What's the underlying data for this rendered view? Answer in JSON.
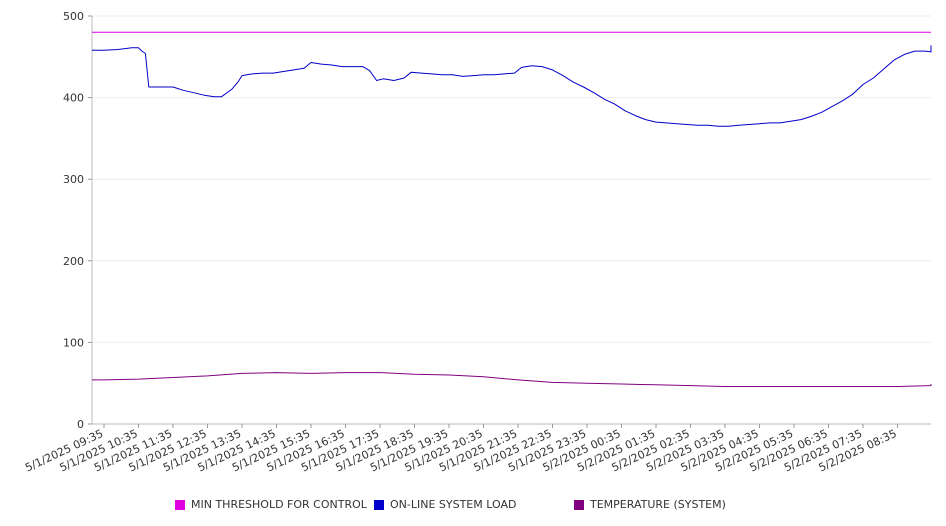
{
  "chart_data": {
    "type": "line",
    "title": "",
    "xlabel": "",
    "ylabel": "",
    "ylim": [
      0,
      500
    ],
    "yticks": [
      0,
      100,
      200,
      300,
      400,
      500
    ],
    "grid": true,
    "legend_position": "bottom",
    "x_tick_labels": [
      "5/1/2025 09:35",
      "5/1/2025 10:35",
      "5/1/2025 11:35",
      "5/1/2025 12:35",
      "5/1/2025 13:35",
      "5/1/2025 14:35",
      "5/1/2025 15:35",
      "5/1/2025 16:35",
      "5/1/2025 17:35",
      "5/1/2025 18:35",
      "5/1/2025 19:35",
      "5/1/2025 20:35",
      "5/1/2025 21:35",
      "5/1/2025 22:35",
      "5/1/2025 23:35",
      "5/2/2025 00:35",
      "5/2/2025 01:35",
      "5/2/2025 02:35",
      "5/2/2025 03:35",
      "5/2/2025 04:35",
      "5/2/2025 05:35",
      "5/2/2025 06:35",
      "5/2/2025 07:35",
      "5/2/2025 08:35"
    ],
    "series": [
      {
        "name": "MIN THRESHOLD FOR CONTROL",
        "color": "#e000e0",
        "points": [
          [
            0,
            480
          ],
          [
            24,
            480
          ]
        ]
      },
      {
        "name": "ON-LINE SYSTEM LOAD",
        "color": "#0000cc",
        "points": [
          [
            0,
            458
          ],
          [
            0.4,
            459
          ],
          [
            0.8,
            461
          ],
          [
            1.0,
            461
          ],
          [
            1.1,
            457
          ],
          [
            1.2,
            454
          ],
          [
            1.3,
            413
          ],
          [
            1.7,
            413
          ],
          [
            2.0,
            413
          ],
          [
            2.3,
            409
          ],
          [
            2.6,
            406
          ],
          [
            2.9,
            403
          ],
          [
            3.2,
            401
          ],
          [
            3.4,
            401
          ],
          [
            3.7,
            410
          ],
          [
            3.9,
            420
          ],
          [
            4.0,
            427
          ],
          [
            4.3,
            429
          ],
          [
            4.6,
            430
          ],
          [
            4.9,
            430
          ],
          [
            5.2,
            432
          ],
          [
            5.5,
            434
          ],
          [
            5.8,
            436
          ],
          [
            6.0,
            443
          ],
          [
            6.3,
            441
          ],
          [
            6.6,
            440
          ],
          [
            6.9,
            438
          ],
          [
            7.2,
            438
          ],
          [
            7.5,
            438
          ],
          [
            7.7,
            433
          ],
          [
            7.9,
            421
          ],
          [
            8.1,
            423
          ],
          [
            8.4,
            421
          ],
          [
            8.7,
            424
          ],
          [
            8.9,
            431
          ],
          [
            9.2,
            430
          ],
          [
            9.5,
            429
          ],
          [
            9.8,
            428
          ],
          [
            10.1,
            428
          ],
          [
            10.4,
            426
          ],
          [
            10.7,
            427
          ],
          [
            11.0,
            428
          ],
          [
            11.3,
            428
          ],
          [
            11.6,
            429
          ],
          [
            11.9,
            430
          ],
          [
            12.1,
            437
          ],
          [
            12.4,
            439
          ],
          [
            12.7,
            438
          ],
          [
            13.0,
            434
          ],
          [
            13.3,
            427
          ],
          [
            13.6,
            419
          ],
          [
            13.9,
            413
          ],
          [
            14.2,
            406
          ],
          [
            14.5,
            398
          ],
          [
            14.8,
            392
          ],
          [
            15.1,
            384
          ],
          [
            15.4,
            378
          ],
          [
            15.7,
            373
          ],
          [
            16.0,
            370
          ],
          [
            16.3,
            369
          ],
          [
            16.6,
            368
          ],
          [
            16.9,
            367
          ],
          [
            17.2,
            366
          ],
          [
            17.5,
            366
          ],
          [
            17.8,
            365
          ],
          [
            18.1,
            365
          ],
          [
            18.4,
            366
          ],
          [
            18.7,
            367
          ],
          [
            19.0,
            368
          ],
          [
            19.3,
            369
          ],
          [
            19.6,
            369
          ],
          [
            19.9,
            371
          ],
          [
            20.2,
            373
          ],
          [
            20.5,
            377
          ],
          [
            20.8,
            382
          ],
          [
            21.1,
            389
          ],
          [
            21.4,
            396
          ],
          [
            21.7,
            404
          ],
          [
            22.0,
            416
          ],
          [
            22.3,
            424
          ],
          [
            22.6,
            435
          ],
          [
            22.9,
            446
          ],
          [
            23.2,
            453
          ],
          [
            23.5,
            457
          ],
          [
            23.8,
            457
          ],
          [
            24.1,
            456
          ],
          [
            24.3,
            457
          ],
          [
            24.5,
            461
          ],
          [
            24.7,
            463
          ],
          [
            25.0,
            461
          ],
          [
            25.2,
            463
          ],
          [
            25.4,
            464
          ],
          [
            25.5,
            464
          ]
        ]
      },
      {
        "name": "TEMPERATURE (SYSTEM)",
        "color": "#800080",
        "points": [
          [
            0,
            54
          ],
          [
            1.0,
            55
          ],
          [
            2.0,
            57
          ],
          [
            3.0,
            59
          ],
          [
            4.0,
            62
          ],
          [
            5.0,
            63
          ],
          [
            6.0,
            62
          ],
          [
            7.0,
            63
          ],
          [
            8.0,
            63
          ],
          [
            9.0,
            61
          ],
          [
            10.0,
            60
          ],
          [
            11.0,
            58
          ],
          [
            12.0,
            54
          ],
          [
            13.0,
            51
          ],
          [
            14.0,
            50
          ],
          [
            15.0,
            49
          ],
          [
            16.0,
            48
          ],
          [
            17.0,
            47
          ],
          [
            18.0,
            46
          ],
          [
            19.0,
            46
          ],
          [
            20.0,
            46
          ],
          [
            21.0,
            46
          ],
          [
            22.0,
            46
          ],
          [
            23.0,
            46
          ],
          [
            24.0,
            47
          ],
          [
            25.0,
            48
          ],
          [
            25.5,
            49
          ]
        ]
      }
    ]
  }
}
